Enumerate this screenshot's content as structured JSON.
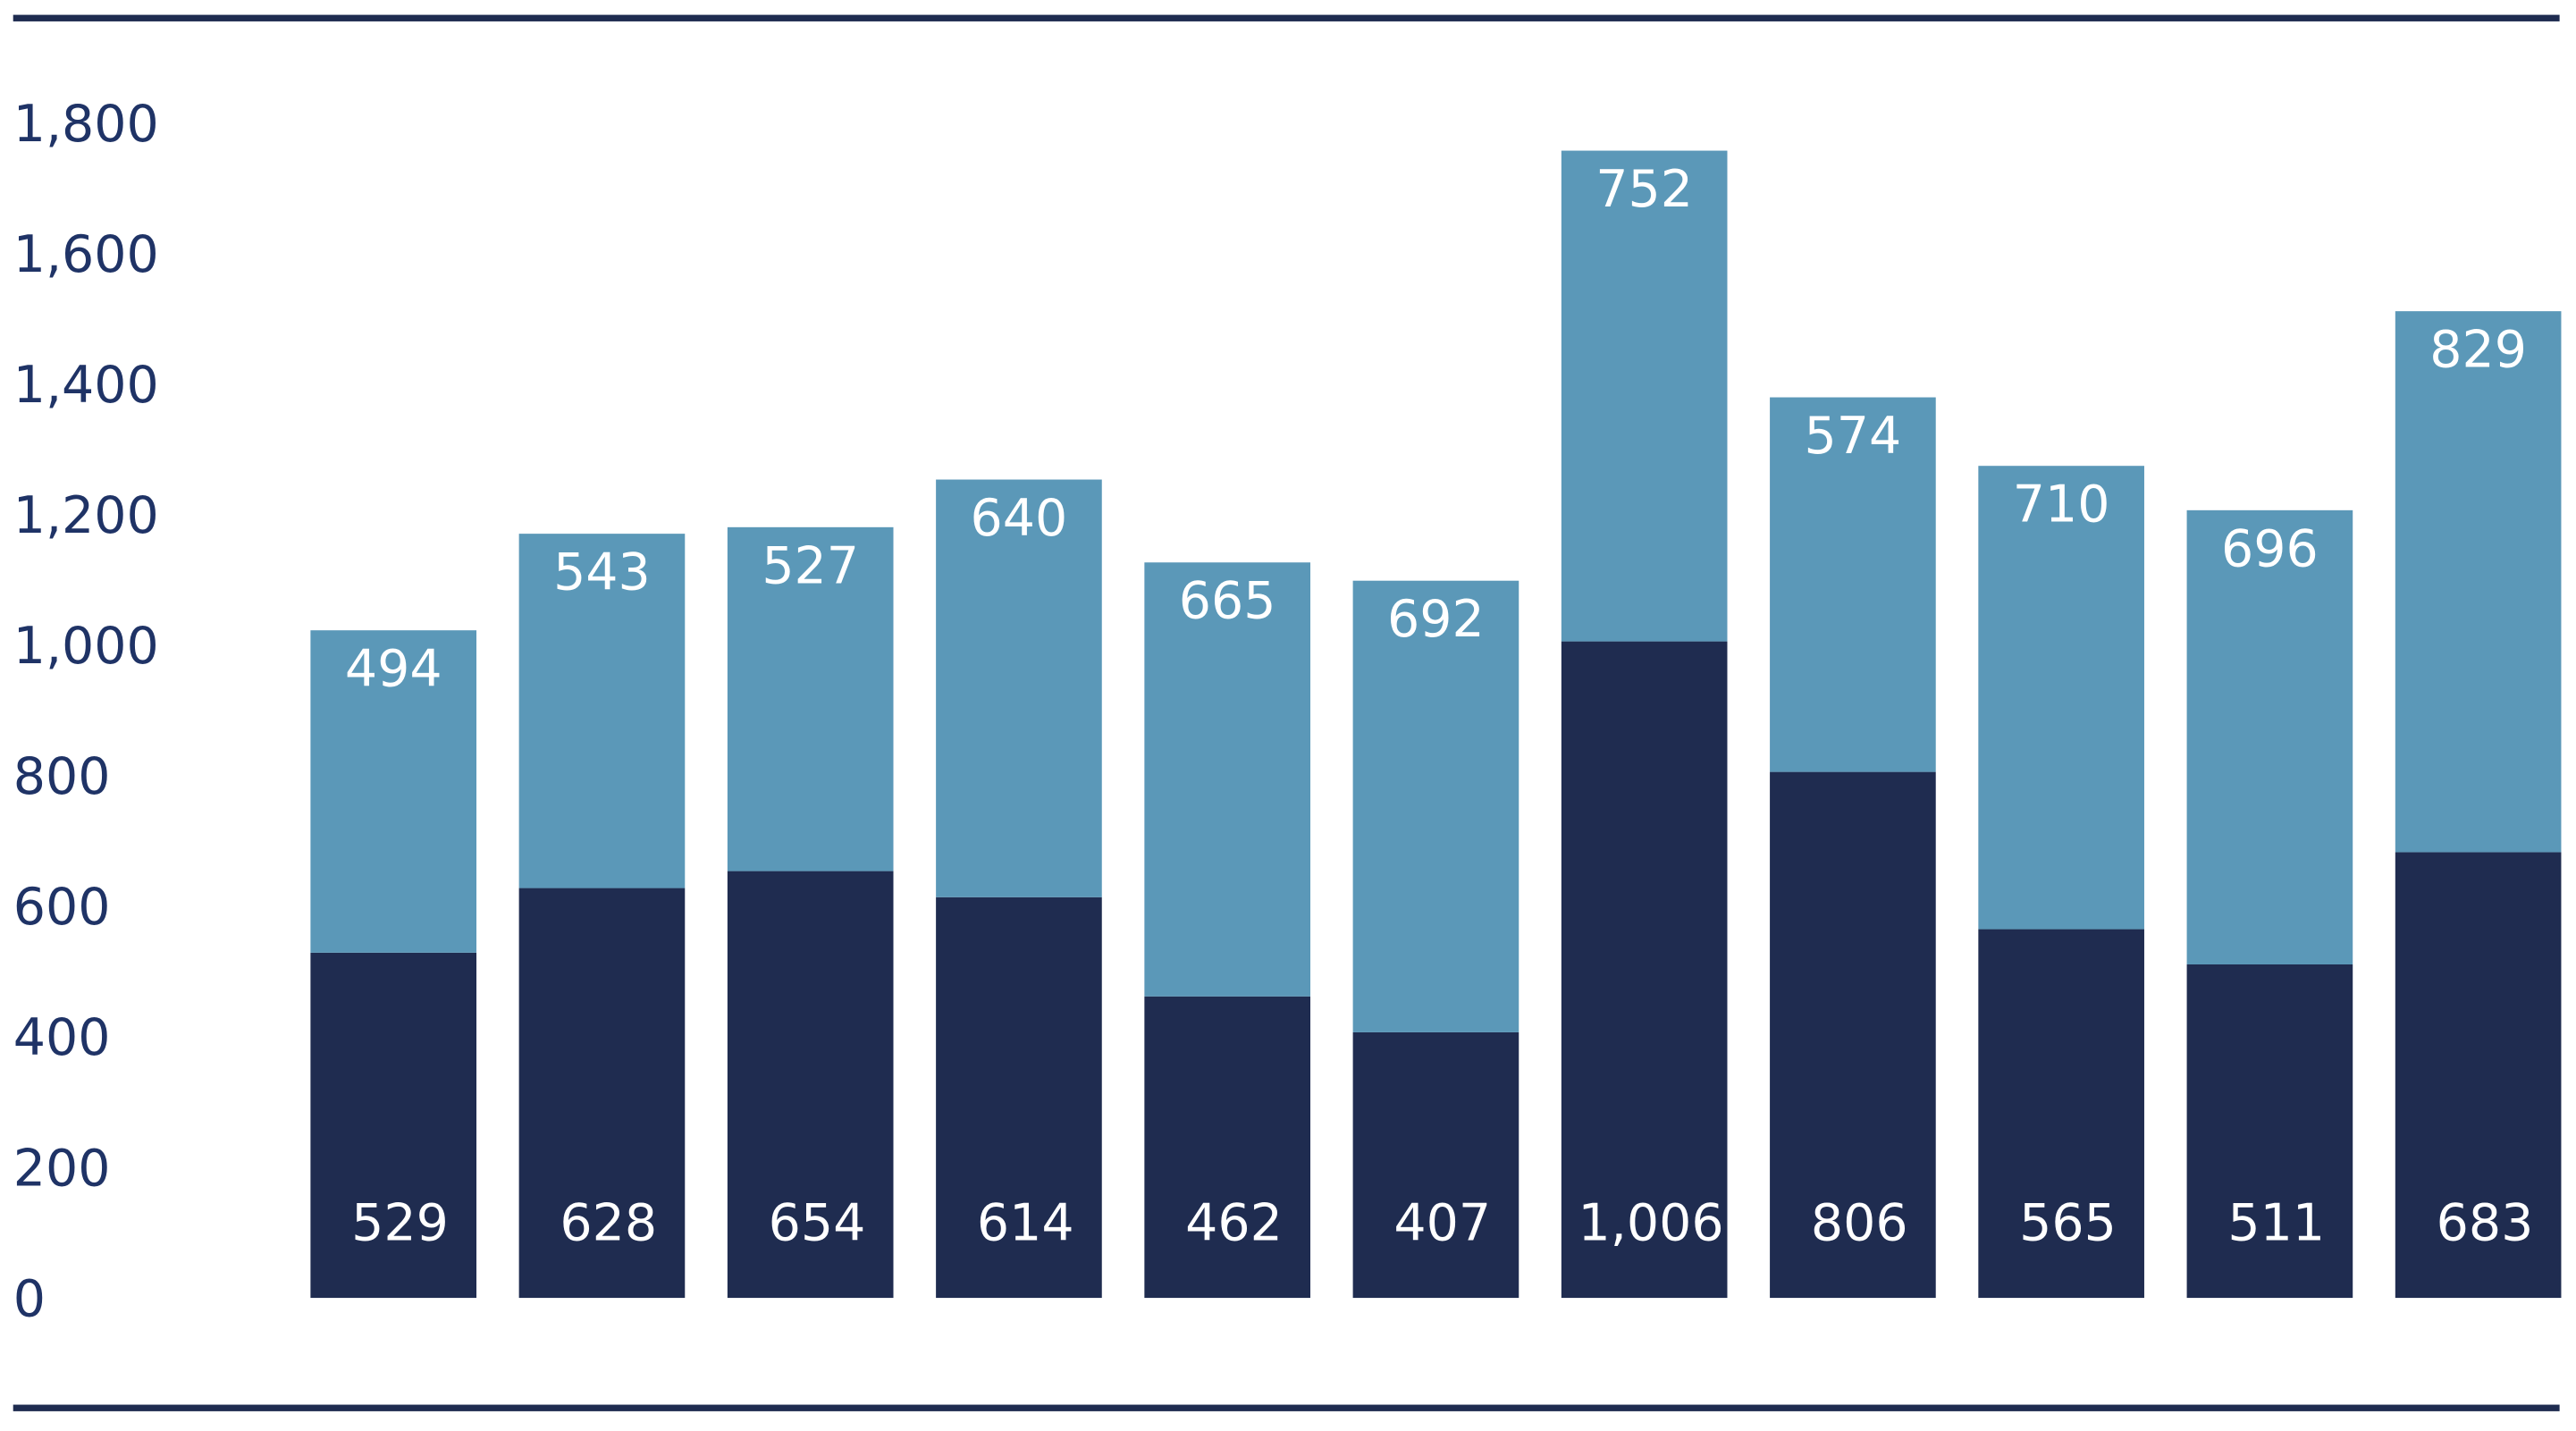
{
  "chart_data": {
    "type": "bar",
    "stacked": true,
    "title": "",
    "xlabel": "",
    "ylabel": "",
    "ylim": [
      0,
      1800
    ],
    "yticks": [
      "0",
      "200",
      "400",
      "600",
      "800",
      "1,000",
      "1,200",
      "1,400",
      "1,600",
      "1,800"
    ],
    "ytick_values": [
      0,
      200,
      400,
      600,
      800,
      1000,
      1200,
      1400,
      1600,
      1800
    ],
    "grid": false,
    "categories": [
      "",
      "",
      "",
      "",
      "",
      "",
      "",
      "",
      "",
      "",
      ""
    ],
    "series": [
      {
        "color": "#1f2c50",
        "values": [
          529,
          628,
          654,
          614,
          462,
          407,
          1006,
          806,
          565,
          511,
          683
        ],
        "labels": [
          "529",
          "628",
          "654",
          "614",
          "462",
          "407",
          "1,006",
          "806",
          "565",
          "511",
          "683"
        ]
      },
      {
        "color": "#5b98b8",
        "values": [
          494,
          543,
          527,
          640,
          665,
          692,
          752,
          574,
          710,
          696,
          829
        ],
        "labels": [
          "494",
          "543",
          "527",
          "640",
          "665",
          "692",
          "752",
          "574",
          "710",
          "696",
          "829"
        ]
      }
    ],
    "rule_color": "#1f2c50",
    "tick_color": "#1f3366"
  }
}
